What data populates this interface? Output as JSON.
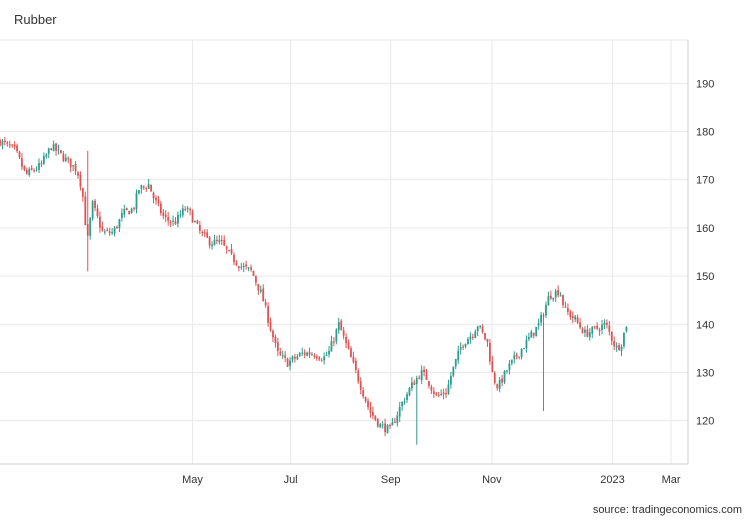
{
  "chart_data": {
    "type": "candlestick",
    "title": "Rubber",
    "source": "source: tradingeconomics.com",
    "colors": {
      "up": "#2a9d8f",
      "down": "#e05252",
      "grid": "#e9e9e9",
      "axis": "#cfcfcf"
    },
    "xlabels": [
      "May",
      "Jul",
      "Sep",
      "Nov",
      "2023",
      "Mar"
    ],
    "xlabel_positions": [
      37.5,
      56.6,
      76.1,
      95.8,
      119.3,
      130.7
    ],
    "ylim": [
      111,
      199
    ],
    "yticks": [
      120,
      130,
      140,
      150,
      160,
      170,
      180,
      190
    ],
    "x_range": [
      0,
      134
    ],
    "anchors": [
      [
        0,
        178
      ],
      [
        3,
        176
      ],
      [
        5,
        171
      ],
      [
        8,
        173
      ],
      [
        10,
        177
      ],
      [
        13,
        174
      ],
      [
        15,
        172
      ],
      [
        16,
        168
      ],
      [
        17,
        157
      ],
      [
        18,
        165
      ],
      [
        20,
        159
      ],
      [
        22,
        159
      ],
      [
        24,
        163
      ],
      [
        26,
        164
      ],
      [
        27,
        168
      ],
      [
        29,
        169
      ],
      [
        30,
        166
      ],
      [
        32,
        162
      ],
      [
        34,
        161
      ],
      [
        36,
        164
      ],
      [
        37,
        163
      ],
      [
        39,
        159
      ],
      [
        41,
        157
      ],
      [
        43,
        157
      ],
      [
        45,
        154
      ],
      [
        47,
        152
      ],
      [
        49,
        151
      ],
      [
        51,
        146
      ],
      [
        52,
        142
      ],
      [
        54,
        134
      ],
      [
        56,
        132
      ],
      [
        59,
        134
      ],
      [
        61,
        134
      ],
      [
        63,
        133
      ],
      [
        64,
        134
      ],
      [
        66,
        140
      ],
      [
        68,
        134
      ],
      [
        70,
        128
      ],
      [
        72,
        122
      ],
      [
        74,
        119
      ],
      [
        76,
        118
      ],
      [
        78,
        123
      ],
      [
        80,
        127
      ],
      [
        82,
        130
      ],
      [
        83,
        129
      ],
      [
        85,
        125
      ],
      [
        87,
        126
      ],
      [
        88,
        130
      ],
      [
        90,
        136
      ],
      [
        92,
        138
      ],
      [
        93,
        140
      ],
      [
        95,
        136
      ],
      [
        96,
        129
      ],
      [
        97,
        127
      ],
      [
        99,
        131
      ],
      [
        101,
        134
      ],
      [
        103,
        137
      ],
      [
        105,
        140
      ],
      [
        107,
        146
      ],
      [
        109,
        147
      ],
      [
        110,
        143
      ],
      [
        112,
        141
      ],
      [
        114,
        138
      ],
      [
        116,
        139
      ],
      [
        118,
        140
      ],
      [
        120,
        135
      ],
      [
        121,
        136
      ],
      [
        122,
        140
      ]
    ],
    "spikes": [
      {
        "x": 17,
        "low": 151,
        "high": 176
      },
      {
        "x": 81,
        "low": 115,
        "high": 120
      },
      {
        "x": 106,
        "low": 122,
        "high": 131
      }
    ]
  }
}
